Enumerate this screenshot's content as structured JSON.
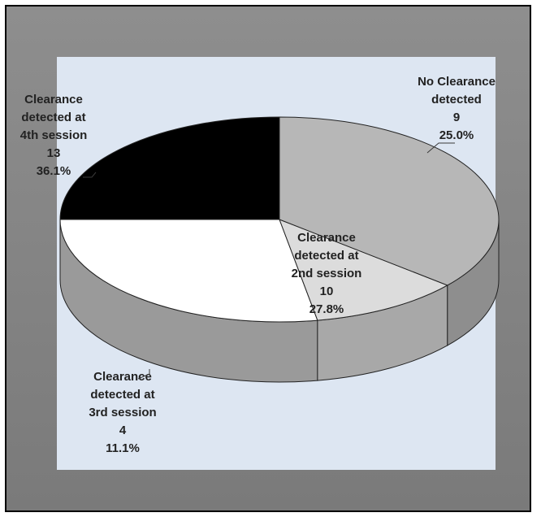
{
  "chart_data": {
    "type": "pie",
    "title": "",
    "style": "3d-exploded-pie",
    "colors": {
      "outer_background": "#8c8c8c",
      "plot_background": "#dde6f2",
      "border": "#000000"
    },
    "slices": [
      {
        "label_lines": [
          "No Clearance",
          "detected"
        ],
        "value": 9,
        "percent": "25.0%",
        "color": "#000000",
        "side_color": "#000000"
      },
      {
        "label_lines": [
          "Clearance",
          "detected at",
          "2nd session"
        ],
        "value": 10,
        "percent": "27.8%",
        "color": "#ffffff",
        "side_color": "#9a9a9a"
      },
      {
        "label_lines": [
          "Clearance",
          "detected at",
          "3rd session"
        ],
        "value": 4,
        "percent": "11.1%",
        "color": "#dcdcdc",
        "side_color": "#a8a8a8"
      },
      {
        "label_lines": [
          "Clearance",
          "detected at",
          "4th session"
        ],
        "value": 13,
        "percent": "36.1%",
        "color": "#b7b7b7",
        "side_color": "#8e8e8e"
      }
    ]
  }
}
